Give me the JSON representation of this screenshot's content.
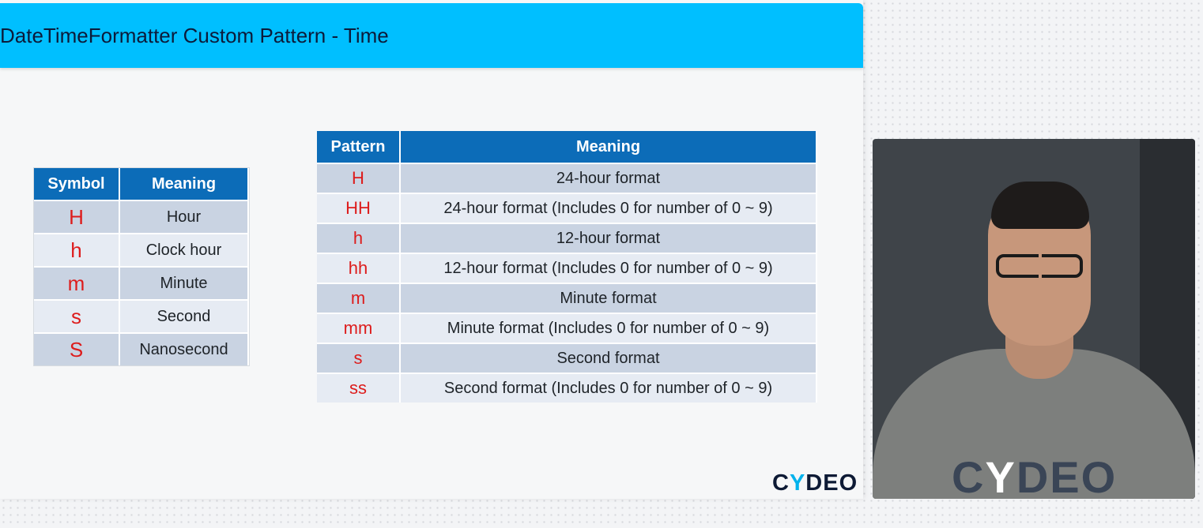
{
  "slide": {
    "title": "DateTimeFormatter Custom Pattern - Time",
    "logo": {
      "part1": "C",
      "part2": "Y",
      "part3": "DEO"
    }
  },
  "symbol_table": {
    "headers": [
      "Symbol",
      "Meaning"
    ],
    "rows": [
      {
        "symbol": "H",
        "meaning": "Hour"
      },
      {
        "symbol": "h",
        "meaning": "Clock hour"
      },
      {
        "symbol": "m",
        "meaning": "Minute"
      },
      {
        "symbol": "s",
        "meaning": "Second"
      },
      {
        "symbol": "S",
        "meaning": "Nanosecond"
      }
    ]
  },
  "pattern_table": {
    "headers": [
      "Pattern",
      "Meaning"
    ],
    "rows": [
      {
        "pattern": "H",
        "meaning": "24-hour format"
      },
      {
        "pattern": "HH",
        "meaning": "24-hour format (Includes 0 for number of 0 ~ 9)"
      },
      {
        "pattern": "h",
        "meaning": "12-hour format"
      },
      {
        "pattern": "hh",
        "meaning": "12-hour format (Includes 0 for number of 0 ~ 9)"
      },
      {
        "pattern": "m",
        "meaning": "Minute format"
      },
      {
        "pattern": "mm",
        "meaning": "Minute format (Includes 0 for number of 0 ~ 9)"
      },
      {
        "pattern": "s",
        "meaning": "Second format"
      },
      {
        "pattern": "ss",
        "meaning": "Second format (Includes 0 for number of 0 ~ 9)"
      }
    ]
  },
  "presenter": {
    "shirt_text": {
      "part1": "C",
      "part2": "Y",
      "part3": "DEO"
    }
  },
  "colors": {
    "title_bar": "#00bfff",
    "table_header": "#0c6cb8",
    "symbol_text": "#dd1c1c"
  }
}
